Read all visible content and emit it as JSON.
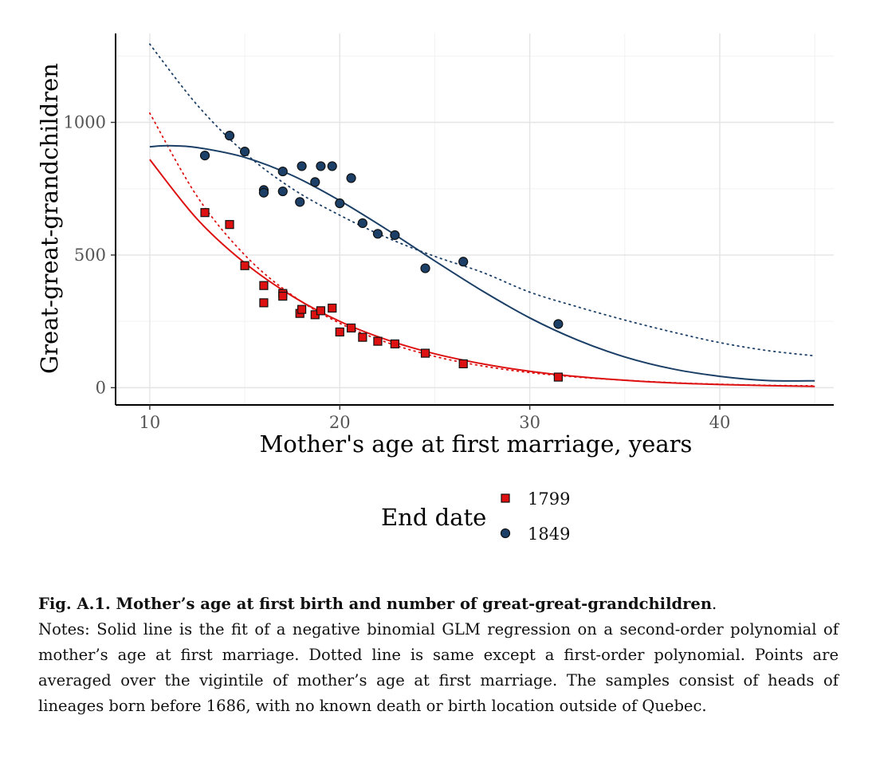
{
  "chart_data": {
    "type": "scatter",
    "xlabel": "Mother's age at first marriage, years",
    "ylabel": "Great-great-grandchildren",
    "xlim": [
      8.2,
      46
    ],
    "ylim": [
      -65,
      1335
    ],
    "x_ticks": [
      10,
      20,
      30,
      40
    ],
    "y_ticks": [
      0,
      500,
      1000
    ],
    "x_tick_labels": [
      "10",
      "20",
      "30",
      "40"
    ],
    "y_tick_labels": [
      "0",
      "500",
      "1000"
    ],
    "grid": true,
    "legend": {
      "title": "End date",
      "position": "bottom",
      "entries": [
        "1799",
        "1849"
      ]
    },
    "series": [
      {
        "name": "1799",
        "color": "#dd1111",
        "marker": "square",
        "points": {
          "x": [
            12.9,
            14.2,
            15.0,
            16.0,
            16.0,
            17.0,
            17.0,
            17.9,
            18.0,
            18.7,
            19.0,
            19.6,
            20.0,
            20.6,
            21.2,
            22.0,
            22.9,
            24.5,
            26.5,
            31.5
          ],
          "y": [
            660,
            615,
            460,
            385,
            320,
            355,
            345,
            280,
            295,
            275,
            290,
            300,
            210,
            225,
            190,
            175,
            165,
            130,
            90,
            40
          ]
        },
        "fit_solid": {
          "x": [
            10,
            12.5,
            15,
            17.5,
            20,
            22.5,
            25,
            27.5,
            30,
            32.5,
            35,
            37.5,
            40,
            42.5,
            45
          ],
          "y": [
            860,
            635,
            470,
            345,
            250,
            180,
            128,
            90,
            62,
            42,
            28,
            18,
            12,
            8,
            5
          ]
        },
        "fit_dotted": {
          "x": [
            10,
            12.5,
            15,
            17.5,
            20,
            22.5,
            25,
            27.5,
            30,
            32.5,
            35,
            37.5,
            40,
            42.5,
            45
          ],
          "y": [
            1035,
            720,
            500,
            348,
            243,
            170,
            118,
            82,
            57,
            40,
            28,
            19,
            13,
            9,
            7
          ]
        }
      },
      {
        "name": "1849",
        "color": "#1b3f66",
        "marker": "circle",
        "points": {
          "x": [
            12.9,
            14.2,
            15.0,
            16.0,
            16.0,
            17.0,
            17.0,
            17.9,
            18.0,
            18.7,
            19.0,
            19.6,
            20.0,
            20.6,
            21.2,
            22.0,
            22.9,
            24.5,
            26.5,
            31.5
          ],
          "y": [
            875,
            950,
            890,
            745,
            735,
            815,
            740,
            700,
            835,
            775,
            835,
            835,
            695,
            790,
            620,
            580,
            575,
            450,
            475,
            240
          ]
        },
        "fit_solid": {
          "x": [
            10,
            11,
            12.5,
            15,
            17.5,
            20,
            22.5,
            25,
            27.5,
            30,
            32.5,
            35,
            37.5,
            40,
            42.5,
            45
          ],
          "y": [
            908,
            912,
            905,
            868,
            800,
            705,
            595,
            478,
            365,
            263,
            180,
            116,
            71,
            43,
            27,
            26
          ]
        },
        "fit_dotted": {
          "x": [
            10,
            12.5,
            15,
            17.5,
            20,
            22.5,
            25,
            27.5,
            30,
            32.5,
            35,
            37.5,
            40,
            42.5,
            45
          ],
          "y": [
            1295,
            1065,
            885,
            750,
            650,
            565,
            495,
            435,
            360,
            305,
            255,
            210,
            170,
            140,
            120
          ]
        }
      }
    ]
  },
  "caption": {
    "title": "Fig. A.1.  Mother’s age at first birth and number of great-great-grandchildren",
    "title_end": ".",
    "notes": "Notes: Solid line is the fit of a negative binomial GLM regression on a second-order polynomial of mother’s age at first marriage. Dotted line is same except a first-order polynomial. Points are averaged over the vigintile of mother’s age at first marriage. The samples consist of heads of lineages born before 1686, with no known death or birth location outside of Quebec."
  }
}
